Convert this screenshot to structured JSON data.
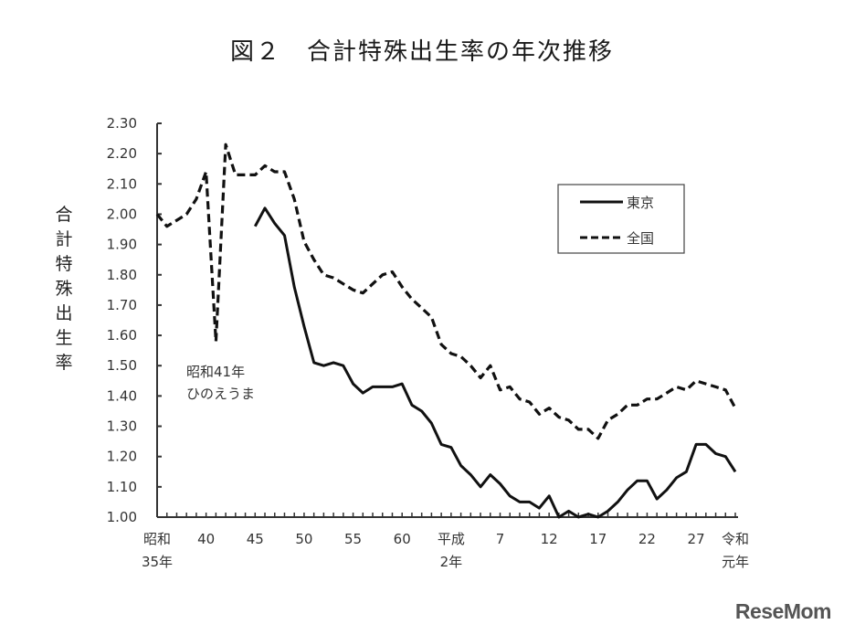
{
  "title": "図２　合計特殊出生率の年次推移",
  "ylabel": "合計特殊出生率",
  "annotation": {
    "line1": "昭和41年",
    "line2": "ひのえうま"
  },
  "legend": {
    "tokyo": "東京",
    "national": "全国"
  },
  "watermark": "ReseMom",
  "x_ticks": [
    {
      "year": 1960,
      "line1": "昭和",
      "line2": "35年"
    },
    {
      "year": 1965,
      "line1": "40",
      "line2": ""
    },
    {
      "year": 1970,
      "line1": "45",
      "line2": ""
    },
    {
      "year": 1975,
      "line1": "50",
      "line2": ""
    },
    {
      "year": 1980,
      "line1": "55",
      "line2": ""
    },
    {
      "year": 1985,
      "line1": "60",
      "line2": ""
    },
    {
      "year": 1990,
      "line1": "平成",
      "line2": "2年"
    },
    {
      "year": 1995,
      "line1": "7",
      "line2": ""
    },
    {
      "year": 2000,
      "line1": "12",
      "line2": ""
    },
    {
      "year": 2005,
      "line1": "17",
      "line2": ""
    },
    {
      "year": 2010,
      "line1": "22",
      "line2": ""
    },
    {
      "year": 2015,
      "line1": "27",
      "line2": ""
    },
    {
      "year": 2019,
      "line1": "令和",
      "line2": "元年"
    }
  ],
  "y_ticks": [
    "1.00",
    "1.10",
    "1.20",
    "1.30",
    "1.40",
    "1.50",
    "1.60",
    "1.70",
    "1.80",
    "1.90",
    "2.00",
    "2.10",
    "2.20",
    "2.30"
  ],
  "chart_data": {
    "type": "line",
    "title": "図２　合計特殊出生率の年次推移",
    "xlabel": "",
    "ylabel": "合計特殊出生率",
    "ylim": [
      1.0,
      2.3
    ],
    "xlim": [
      1960,
      2019
    ],
    "grid": false,
    "legend_position": "upper right",
    "annotations": [
      "昭和41年 ひのえうま (1966)"
    ],
    "series": [
      {
        "name": "全国",
        "style": "dashed",
        "x": [
          1960,
          1961,
          1962,
          1963,
          1964,
          1965,
          1966,
          1967,
          1968,
          1969,
          1970,
          1971,
          1972,
          1973,
          1974,
          1975,
          1976,
          1977,
          1978,
          1979,
          1980,
          1981,
          1982,
          1983,
          1984,
          1985,
          1986,
          1987,
          1988,
          1989,
          1990,
          1991,
          1992,
          1993,
          1994,
          1995,
          1996,
          1997,
          1998,
          1999,
          2000,
          2001,
          2002,
          2003,
          2004,
          2005,
          2006,
          2007,
          2008,
          2009,
          2010,
          2011,
          2012,
          2013,
          2014,
          2015,
          2016,
          2017,
          2018,
          2019
        ],
        "values": [
          2.0,
          1.96,
          1.98,
          2.0,
          2.05,
          2.14,
          1.58,
          2.23,
          2.13,
          2.13,
          2.13,
          2.16,
          2.14,
          2.14,
          2.05,
          1.91,
          1.85,
          1.8,
          1.79,
          1.77,
          1.75,
          1.74,
          1.77,
          1.8,
          1.81,
          1.76,
          1.72,
          1.69,
          1.66,
          1.57,
          1.54,
          1.53,
          1.5,
          1.46,
          1.5,
          1.42,
          1.43,
          1.39,
          1.38,
          1.34,
          1.36,
          1.33,
          1.32,
          1.29,
          1.29,
          1.26,
          1.32,
          1.34,
          1.37,
          1.37,
          1.39,
          1.39,
          1.41,
          1.43,
          1.42,
          1.45,
          1.44,
          1.43,
          1.42,
          1.36
        ]
      },
      {
        "name": "東京",
        "style": "solid",
        "x": [
          1970,
          1971,
          1972,
          1973,
          1974,
          1975,
          1976,
          1977,
          1978,
          1979,
          1980,
          1981,
          1982,
          1983,
          1984,
          1985,
          1986,
          1987,
          1988,
          1989,
          1990,
          1991,
          1992,
          1993,
          1994,
          1995,
          1996,
          1997,
          1998,
          1999,
          2000,
          2001,
          2002,
          2003,
          2004,
          2005,
          2006,
          2007,
          2008,
          2009,
          2010,
          2011,
          2012,
          2013,
          2014,
          2015,
          2016,
          2017,
          2018,
          2019
        ],
        "values": [
          1.96,
          2.02,
          1.97,
          1.93,
          1.76,
          1.63,
          1.51,
          1.5,
          1.51,
          1.5,
          1.44,
          1.41,
          1.43,
          1.43,
          1.43,
          1.44,
          1.37,
          1.35,
          1.31,
          1.24,
          1.23,
          1.17,
          1.14,
          1.1,
          1.14,
          1.11,
          1.07,
          1.05,
          1.05,
          1.03,
          1.07,
          1.0,
          1.02,
          1.0,
          1.01,
          1.0,
          1.02,
          1.05,
          1.09,
          1.12,
          1.12,
          1.06,
          1.09,
          1.13,
          1.15,
          1.24,
          1.24,
          1.21,
          1.2,
          1.15
        ]
      }
    ]
  }
}
